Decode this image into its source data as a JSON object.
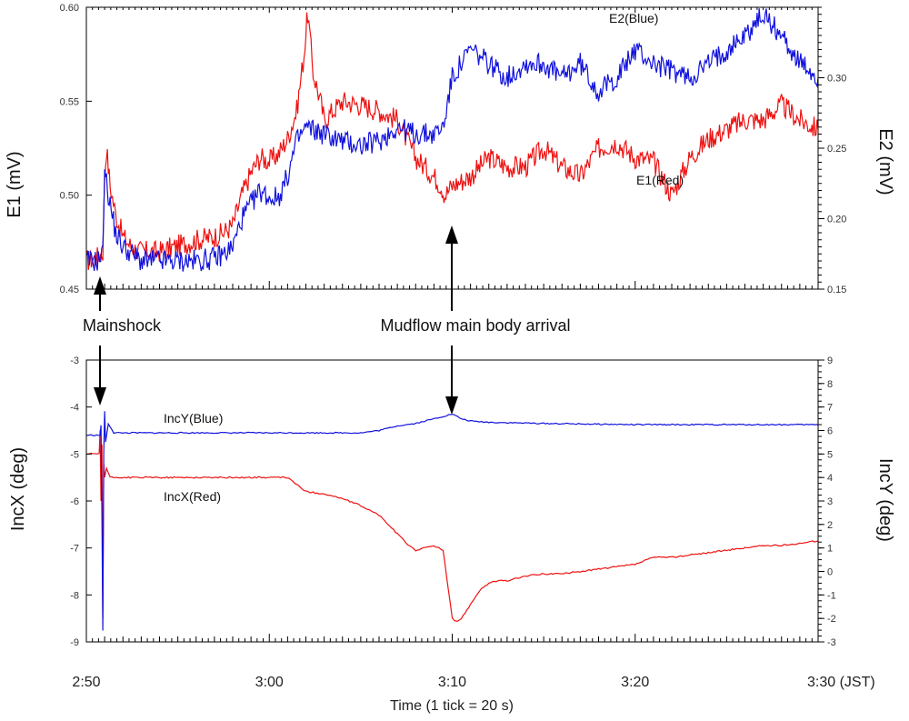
{
  "colors": {
    "red": "#ee1111",
    "blue": "#1111dd",
    "axis": "#000000"
  },
  "chart_data": [
    {
      "type": "line",
      "panel": "top",
      "ylabel_left": "E1 (mV)",
      "ylabel_right": "E2 (mV)",
      "ylim_left": [
        0.45,
        0.6
      ],
      "ylim_right": [
        0.15,
        0.35
      ],
      "xlim_min": [
        0,
        40
      ],
      "yticks_left": [
        "0.45",
        "0.50",
        "0.55",
        "0.60"
      ],
      "yticks_right": [
        "0.15",
        "0.20",
        "0.25",
        "0.30"
      ],
      "series": [
        {
          "name": "E1(Red)",
          "color": "red",
          "axis": "left",
          "x": [
            0,
            0.6,
            0.9,
            1.0,
            1.1,
            1.3,
            1.6,
            2.0,
            2.5,
            3,
            4,
            5,
            6,
            7,
            7.5,
            8,
            8.5,
            9,
            9.5,
            10,
            10.5,
            11,
            11.5,
            11.9,
            12.1,
            12.4,
            12.8,
            13,
            14,
            15,
            16,
            17,
            17.5,
            18,
            19,
            19.4,
            19.6,
            20,
            21,
            22,
            23,
            24,
            25,
            26,
            27,
            28,
            29,
            30,
            31,
            32,
            33,
            34,
            35,
            36,
            37,
            38,
            39,
            40
          ],
          "y": [
            0.465,
            0.467,
            0.47,
            0.51,
            0.525,
            0.505,
            0.49,
            0.478,
            0.472,
            0.47,
            0.47,
            0.473,
            0.476,
            0.478,
            0.48,
            0.484,
            0.5,
            0.512,
            0.52,
            0.518,
            0.522,
            0.53,
            0.545,
            0.575,
            0.597,
            0.565,
            0.55,
            0.54,
            0.55,
            0.548,
            0.545,
            0.54,
            0.53,
            0.52,
            0.51,
            0.505,
            0.5,
            0.505,
            0.51,
            0.52,
            0.515,
            0.515,
            0.525,
            0.515,
            0.51,
            0.525,
            0.528,
            0.52,
            0.518,
            0.5,
            0.52,
            0.53,
            0.535,
            0.54,
            0.54,
            0.548,
            0.54,
            0.535
          ]
        },
        {
          "name": "E2(Blue)",
          "color": "blue",
          "axis": "right",
          "x": [
            0,
            0.6,
            0.9,
            1.0,
            1.1,
            1.3,
            1.6,
            2.0,
            2.5,
            3,
            4,
            5,
            6,
            7,
            7.5,
            8,
            8.5,
            9,
            9.5,
            10,
            10.5,
            11,
            11.5,
            12,
            13,
            14,
            15,
            16,
            17,
            18,
            19,
            19.5,
            20,
            21,
            22,
            23,
            24,
            25,
            26,
            27,
            28,
            29,
            30,
            31,
            32,
            33,
            34,
            35,
            36,
            37,
            38,
            39,
            40
          ],
          "y": [
            0.17,
            0.17,
            0.175,
            0.24,
            0.225,
            0.21,
            0.19,
            0.18,
            0.175,
            0.17,
            0.17,
            0.17,
            0.17,
            0.172,
            0.175,
            0.18,
            0.2,
            0.21,
            0.22,
            0.215,
            0.215,
            0.23,
            0.255,
            0.265,
            0.26,
            0.255,
            0.252,
            0.255,
            0.265,
            0.26,
            0.26,
            0.265,
            0.3,
            0.32,
            0.31,
            0.3,
            0.31,
            0.31,
            0.3,
            0.31,
            0.29,
            0.3,
            0.32,
            0.31,
            0.305,
            0.3,
            0.31,
            0.32,
            0.33,
            0.345,
            0.33,
            0.31,
            0.3
          ]
        }
      ],
      "annotations": [
        {
          "text": "E2(Blue)",
          "x": 30.5,
          "y": 0.59
        },
        {
          "text": "E1(Red)",
          "x": 30.5,
          "y": 0.507
        }
      ]
    },
    {
      "type": "line",
      "panel": "bottom",
      "xlabel": "Time (1 tick = 20 s)",
      "ylabel_left": "IncX (deg)",
      "ylabel_right": "IncY (deg)",
      "ylim_left": [
        -9,
        -3
      ],
      "ylim_right": [
        -3,
        9
      ],
      "xlim_min": [
        0,
        40
      ],
      "yticks_left": [
        "-9",
        "-8",
        "-7",
        "-6",
        "-5",
        "-4",
        "-3"
      ],
      "yticks_right": [
        "-3",
        "-2",
        "-1",
        "0",
        "1",
        "2",
        "3",
        "4",
        "5",
        "6",
        "7",
        "8",
        "9"
      ],
      "xtick_labels": [
        "2:50",
        "3:00",
        "3:10",
        "3:20",
        "3:30 (JST)"
      ],
      "series": [
        {
          "name": "IncY(Blue)",
          "color": "blue",
          "axis": "right",
          "x": [
            0,
            0.75,
            0.8,
            0.85,
            0.9,
            0.95,
            1.0,
            1.05,
            1.2,
            1.5,
            2,
            5,
            10,
            15,
            16,
            17,
            18,
            19,
            19.5,
            20,
            20.5,
            21,
            22,
            25,
            30,
            35,
            40
          ],
          "y": [
            5.8,
            5.8,
            6.2,
            2.5,
            -2.5,
            5.0,
            6.8,
            5.5,
            6.3,
            5.9,
            5.9,
            5.9,
            5.9,
            5.9,
            6.0,
            6.2,
            6.3,
            6.5,
            6.6,
            6.7,
            6.5,
            6.4,
            6.35,
            6.3,
            6.25,
            6.25,
            6.25
          ]
        },
        {
          "name": "IncX(Red)",
          "color": "red",
          "axis": "left",
          "x": [
            0,
            0.7,
            0.75,
            0.8,
            0.85,
            0.9,
            0.95,
            1.0,
            1.1,
            1.3,
            1.5,
            2,
            5,
            11,
            11.5,
            12,
            13,
            14,
            15,
            16,
            16.5,
            17,
            17.5,
            18,
            18.5,
            19,
            19.5,
            20,
            20.1,
            20.3,
            20.5,
            21,
            21.5,
            22,
            22.5,
            23,
            24,
            25,
            26,
            27,
            28,
            29,
            30,
            31,
            32,
            33,
            34,
            35,
            36,
            37,
            38,
            39,
            40
          ],
          "y": [
            -5.0,
            -5.0,
            -4.5,
            -6.0,
            -4.8,
            -8.5,
            -5.2,
            -5.5,
            -5.3,
            -5.5,
            -5.5,
            -5.5,
            -5.5,
            -5.5,
            -5.65,
            -5.8,
            -5.85,
            -5.95,
            -6.1,
            -6.3,
            -6.5,
            -6.7,
            -6.9,
            -7.05,
            -7.0,
            -6.95,
            -7.05,
            -8.5,
            -8.55,
            -8.55,
            -8.5,
            -8.2,
            -7.9,
            -7.75,
            -7.7,
            -7.7,
            -7.6,
            -7.55,
            -7.55,
            -7.5,
            -7.45,
            -7.4,
            -7.35,
            -7.2,
            -7.2,
            -7.15,
            -7.1,
            -7.05,
            -7.0,
            -6.95,
            -6.95,
            -6.9,
            -6.85
          ]
        }
      ],
      "annotations": [
        {
          "text": "IncY(Blue)",
          "x": 4.0,
          "y_right": 6.85
        },
        {
          "text": "IncX(Red)",
          "x": 4.3,
          "y": -5.35
        },
        {
          "text": "Mainshock",
          "x": 1.0
        },
        {
          "text": "Mudflow main body arrival",
          "x": 20.0
        }
      ]
    }
  ]
}
